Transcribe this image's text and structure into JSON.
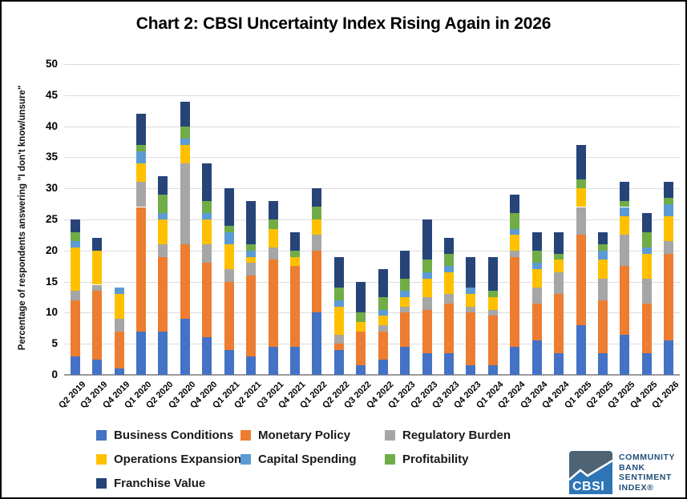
{
  "title": "Chart 2: CBSI Uncertainty Index Rising Again in 2026",
  "y_axis_label": "Percentage of respondents answering \"I don't know/unsure\"",
  "chart_data": {
    "type": "bar",
    "stacked": true,
    "title": "Chart 2: CBSI Uncertainty Index Rising Again in 2026",
    "xlabel": "",
    "ylabel": "Percentage of respondents answering \"I don't know/unsure\"",
    "ylim": [
      0,
      50
    ],
    "ytick_step": 5,
    "grid": true,
    "legend_position": "bottom",
    "categories": [
      "Q2 2019",
      "Q3 2019",
      "Q4 2019",
      "Q1 2020",
      "Q2 2020",
      "Q3 2020",
      "Q4 2020",
      "Q1 2021",
      "Q2 2021",
      "Q3 2021",
      "Q4 2021",
      "Q1 2022",
      "Q2 2022",
      "Q3 2022",
      "Q4 2022",
      "Q1 2023",
      "Q2 2023",
      "Q3 2023",
      "Q4 2023",
      "Q1 2024",
      "Q2 2024",
      "Q3 2024",
      "Q4 2024",
      "Q1 2025",
      "Q2 2025",
      "Q3 2025",
      "Q4 2025",
      "Q1 2026"
    ],
    "totals": [
      25,
      22,
      14,
      42,
      32,
      44,
      34,
      30,
      28,
      28,
      23,
      30,
      19,
      15,
      17,
      20,
      25,
      22,
      19,
      19,
      29,
      23,
      23,
      37,
      23,
      31,
      26,
      31
    ],
    "series": [
      {
        "name": "Business Conditions",
        "color": "#4472C4",
        "values": [
          3,
          2.5,
          1,
          7,
          7,
          9,
          6,
          4,
          3,
          4.5,
          4.5,
          10,
          4,
          1.5,
          2.5,
          4.5,
          3.5,
          3.5,
          1.5,
          1.5,
          4.5,
          5.5,
          3.5,
          8,
          3.5,
          6.5,
          3.5,
          5.5
        ]
      },
      {
        "name": "Monetary Policy",
        "color": "#ED7D31",
        "values": [
          9,
          11,
          6,
          20,
          12,
          12,
          12,
          11,
          13,
          14,
          13,
          10,
          1,
          5.5,
          4.5,
          5.5,
          7,
          8,
          8.5,
          8,
          14.5,
          6,
          9.5,
          14.5,
          8.5,
          11,
          8,
          14
        ]
      },
      {
        "name": "Regulatory Burden",
        "color": "#A6A6A6",
        "values": [
          1.5,
          1,
          2,
          4,
          2,
          13,
          3,
          2,
          2,
          2,
          0,
          2.5,
          1.5,
          0,
          1,
          1,
          2,
          1.5,
          1,
          1,
          1,
          2.5,
          3.5,
          4.5,
          3.5,
          5,
          4,
          2
        ]
      },
      {
        "name": "Operations Expansion",
        "color": "#FFC000",
        "values": [
          7,
          5.5,
          4,
          3,
          4,
          3,
          4,
          4,
          1,
          3,
          1.5,
          2.5,
          4.5,
          1.5,
          1.5,
          1.5,
          3,
          3.5,
          2,
          2,
          2.5,
          3,
          2,
          3,
          3,
          3,
          4,
          4
        ]
      },
      {
        "name": "Capital Spending",
        "color": "#5B9BD5",
        "values": [
          1,
          0,
          1,
          2,
          1,
          1,
          1,
          2,
          1,
          0,
          0,
          0,
          1,
          0,
          1,
          1,
          1,
          1,
          1,
          0,
          1,
          1,
          0,
          0,
          1.5,
          1.5,
          1,
          2
        ]
      },
      {
        "name": "Profitability",
        "color": "#70AD47",
        "values": [
          1.5,
          0,
          0,
          1,
          3,
          2,
          2,
          1,
          1,
          1.5,
          1,
          2,
          2,
          1.5,
          2,
          2,
          2,
          2,
          0,
          1,
          2.5,
          2,
          1,
          1.5,
          1,
          1,
          2.5,
          1
        ]
      },
      {
        "name": "Franchise Value",
        "color": "#264478",
        "values": [
          2,
          2,
          0,
          5,
          3,
          4,
          6,
          6,
          7,
          3,
          3,
          3,
          5,
          5,
          4.5,
          4.5,
          6.5,
          2.5,
          5,
          5.5,
          3,
          3,
          3.5,
          5.5,
          2,
          3,
          3,
          2.5
        ]
      }
    ]
  },
  "legend": {
    "row_groups": [
      [
        0,
        1,
        2
      ],
      [
        3,
        4,
        5
      ],
      [
        6
      ]
    ]
  },
  "logo": {
    "abbr": "CBSI",
    "lines": [
      "COMMUNITY",
      "BANK",
      "SENTIMENT",
      "INDEX®"
    ],
    "text_color": "#1F4E79",
    "box_gray": "#4E6374",
    "box_blue": "#2E75B6"
  }
}
